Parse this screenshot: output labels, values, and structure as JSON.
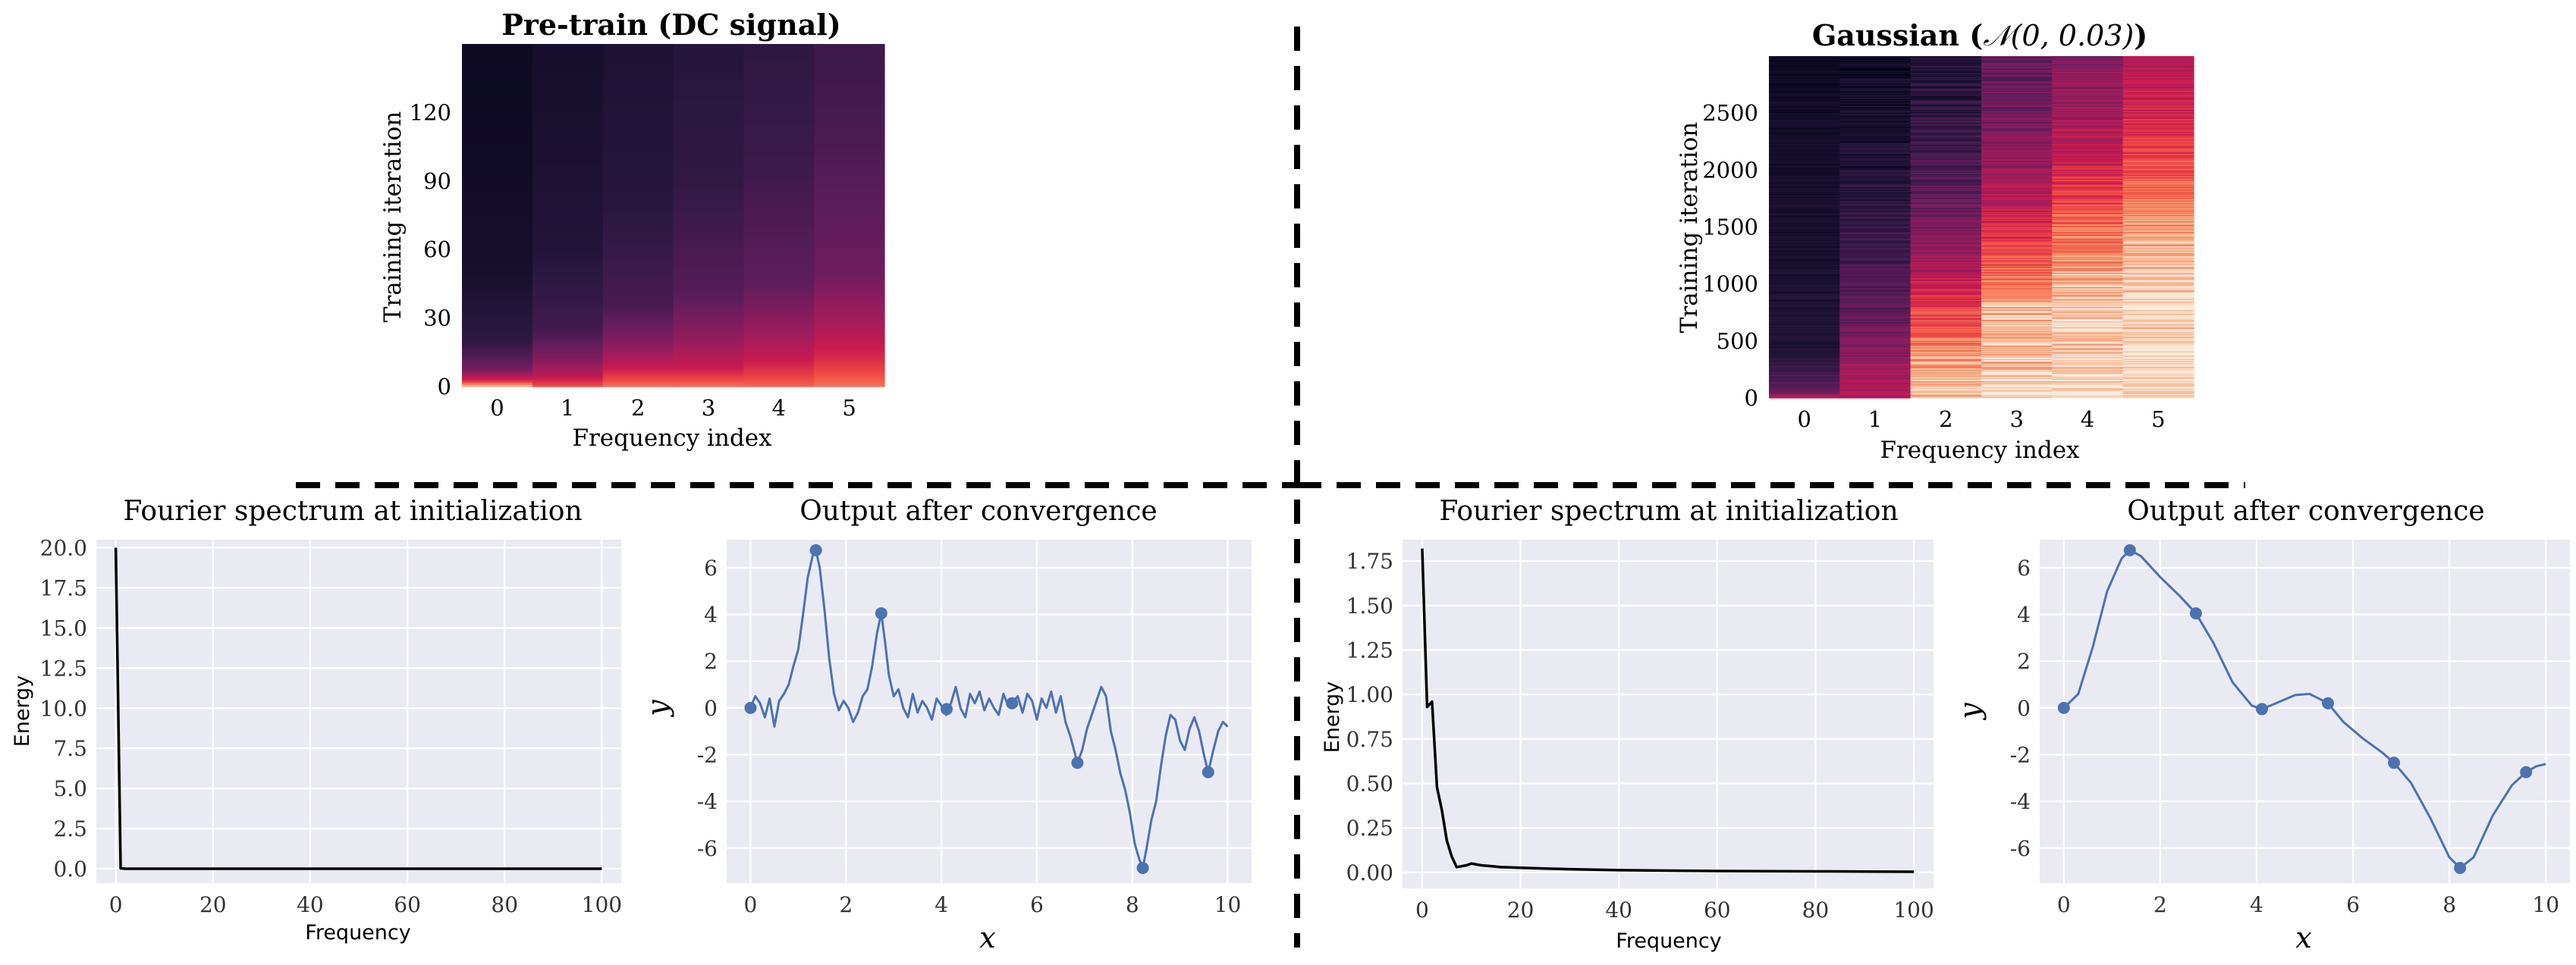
{
  "panels": {
    "top_left": {
      "title": "Pre-train (DC signal)",
      "xlabel": "Frequency index",
      "ylabel": "Training iteration"
    },
    "top_right": {
      "title_prefix": "Gaussian (",
      "title_math": "𝒩(0, 0.03)",
      "title_suffix": ")",
      "xlabel": "Frequency index",
      "ylabel": "Training iteration"
    },
    "bottom_1": {
      "title": "Fourier spectrum at initialization",
      "xlabel": "Frequency",
      "ylabel": "Energy"
    },
    "bottom_2": {
      "title": "Output after convergence",
      "xlabel": "x",
      "ylabel": "y"
    },
    "bottom_3": {
      "title": "Fourier spectrum at initialization",
      "xlabel": "Frequency",
      "ylabel": "Energy"
    },
    "bottom_4": {
      "title": "Output after convergence",
      "xlabel": "x",
      "ylabel": "y"
    }
  },
  "colors": {
    "axes_bg": "#eaeaf2",
    "grid": "#ffffff",
    "series_blue": "#4c72b0",
    "spectrum_line": "#000000",
    "divider": "#000000",
    "heatmap_colormap": "rocket"
  },
  "chart_data": [
    {
      "id": "heatmap_pretrain",
      "type": "heatmap",
      "title": "Pre-train (DC signal)",
      "xlabel": "Frequency index",
      "ylabel": "Training iteration",
      "x_categories": [
        0,
        1,
        2,
        3,
        4,
        5
      ],
      "ylim": [
        0,
        150
      ],
      "yticks": [
        0,
        30,
        60,
        90,
        120
      ],
      "colormap": "rocket",
      "value_range": [
        0,
        1
      ],
      "grid": false,
      "legend": "none",
      "columns": [
        {
          "freq": 0,
          "stops": [
            [
              0,
              0.95
            ],
            [
              3,
              0.62
            ],
            [
              8,
              0.35
            ],
            [
              20,
              0.16
            ],
            [
              50,
              0.08
            ],
            [
              100,
              0.05
            ],
            [
              150,
              0.04
            ]
          ]
        },
        {
          "freq": 1,
          "stops": [
            [
              0,
              0.75
            ],
            [
              5,
              0.55
            ],
            [
              12,
              0.4
            ],
            [
              25,
              0.22
            ],
            [
              60,
              0.12
            ],
            [
              150,
              0.07
            ]
          ]
        },
        {
          "freq": 2,
          "stops": [
            [
              0,
              0.8
            ],
            [
              8,
              0.6
            ],
            [
              18,
              0.42
            ],
            [
              35,
              0.24
            ],
            [
              80,
              0.14
            ],
            [
              150,
              0.1
            ]
          ]
        },
        {
          "freq": 3,
          "stops": [
            [
              0,
              0.8
            ],
            [
              8,
              0.6
            ],
            [
              20,
              0.45
            ],
            [
              40,
              0.28
            ],
            [
              90,
              0.17
            ],
            [
              150,
              0.13
            ]
          ]
        },
        {
          "freq": 4,
          "stops": [
            [
              0,
              0.78
            ],
            [
              10,
              0.62
            ],
            [
              22,
              0.48
            ],
            [
              45,
              0.3
            ],
            [
              100,
              0.2
            ],
            [
              150,
              0.16
            ]
          ]
        },
        {
          "freq": 5,
          "stops": [
            [
              0,
              0.8
            ],
            [
              12,
              0.65
            ],
            [
              25,
              0.52
            ],
            [
              50,
              0.34
            ],
            [
              110,
              0.24
            ],
            [
              150,
              0.2
            ]
          ]
        }
      ]
    },
    {
      "id": "heatmap_gaussian",
      "type": "heatmap",
      "title": "Gaussian (𝒩(0, 0.03))",
      "xlabel": "Frequency index",
      "ylabel": "Training iteration",
      "x_categories": [
        0,
        1,
        2,
        3,
        4,
        5
      ],
      "ylim": [
        0,
        3000
      ],
      "yticks": [
        0,
        500,
        1000,
        1500,
        2000,
        2500
      ],
      "colormap": "rocket",
      "value_range": [
        0,
        1
      ],
      "grid": false,
      "legend": "none",
      "columns": [
        {
          "freq": 0,
          "noise": 0.04,
          "stops": [
            [
              0,
              0.6
            ],
            [
              60,
              0.3
            ],
            [
              400,
              0.12
            ],
            [
              1500,
              0.08
            ],
            [
              3000,
              0.05
            ]
          ]
        },
        {
          "freq": 1,
          "noise": 0.08,
          "stops": [
            [
              0,
              0.55
            ],
            [
              700,
              0.32
            ],
            [
              1500,
              0.16
            ],
            [
              2200,
              0.1
            ],
            [
              3000,
              0.06
            ]
          ]
        },
        {
          "freq": 2,
          "noise": 0.1,
          "stops": [
            [
              0,
              0.96
            ],
            [
              500,
              0.82
            ],
            [
              900,
              0.62
            ],
            [
              1400,
              0.4
            ],
            [
              2200,
              0.2
            ],
            [
              3000,
              0.12
            ]
          ]
        },
        {
          "freq": 3,
          "noise": 0.1,
          "stops": [
            [
              0,
              0.97
            ],
            [
              700,
              0.92
            ],
            [
              1200,
              0.75
            ],
            [
              1800,
              0.52
            ],
            [
              2500,
              0.36
            ],
            [
              3000,
              0.3
            ]
          ]
        },
        {
          "freq": 4,
          "noise": 0.1,
          "stops": [
            [
              0,
              0.98
            ],
            [
              900,
              0.93
            ],
            [
              1500,
              0.78
            ],
            [
              2100,
              0.58
            ],
            [
              2700,
              0.44
            ],
            [
              3000,
              0.4
            ]
          ]
        },
        {
          "freq": 5,
          "noise": 0.08,
          "stops": [
            [
              0,
              0.98
            ],
            [
              1100,
              0.95
            ],
            [
              1700,
              0.82
            ],
            [
              2300,
              0.66
            ],
            [
              2800,
              0.56
            ],
            [
              3000,
              0.52
            ]
          ]
        }
      ]
    },
    {
      "id": "spectrum_dc",
      "type": "line",
      "title": "Fourier spectrum at initialization",
      "xlabel": "Frequency",
      "ylabel": "Energy",
      "xlim": [
        -4,
        104
      ],
      "ylim": [
        -0.9,
        20.5
      ],
      "xticks": [
        0,
        20,
        40,
        60,
        80,
        100
      ],
      "yticks": [
        0.0,
        2.5,
        5.0,
        7.5,
        10.0,
        12.5,
        15.0,
        17.5,
        20.0
      ],
      "ytick_decimals": 1,
      "grid": true,
      "legend": "none",
      "series": [
        {
          "x": [
            0,
            1,
            2,
            100
          ],
          "y": [
            20.0,
            0.02,
            0.0,
            0.0
          ]
        }
      ]
    },
    {
      "id": "output_dc",
      "type": "line",
      "title": "Output after convergence",
      "xlabel": "x",
      "ylabel": "y",
      "xlim": [
        -0.5,
        10.5
      ],
      "ylim": [
        -7.5,
        7.2
      ],
      "xticks": [
        0,
        2,
        4,
        6,
        8,
        10
      ],
      "yticks": [
        -6,
        -4,
        -2,
        0,
        2,
        4,
        6
      ],
      "grid": true,
      "legend": "none",
      "series": [
        {
          "x": [
            0.0,
            0.1,
            0.2,
            0.3,
            0.4,
            0.5,
            0.6,
            0.7,
            0.8,
            0.9,
            1.0,
            1.1,
            1.2,
            1.3,
            1.37,
            1.45,
            1.55,
            1.65,
            1.75,
            1.85,
            1.95,
            2.05,
            2.15,
            2.25,
            2.35,
            2.45,
            2.55,
            2.65,
            2.74,
            2.82,
            2.9,
            3.0,
            3.1,
            3.2,
            3.3,
            3.4,
            3.5,
            3.6,
            3.7,
            3.8,
            3.9,
            4.0,
            4.1,
            4.2,
            4.3,
            4.4,
            4.5,
            4.6,
            4.7,
            4.8,
            4.9,
            5.0,
            5.1,
            5.2,
            5.3,
            5.4,
            5.48,
            5.6,
            5.7,
            5.8,
            5.9,
            6.0,
            6.1,
            6.2,
            6.3,
            6.4,
            6.5,
            6.6,
            6.7,
            6.85,
            6.95,
            7.05,
            7.15,
            7.25,
            7.35,
            7.45,
            7.55,
            7.65,
            7.75,
            7.85,
            7.95,
            8.05,
            8.15,
            8.22,
            8.3,
            8.4,
            8.5,
            8.6,
            8.7,
            8.8,
            8.9,
            9.0,
            9.1,
            9.2,
            9.3,
            9.4,
            9.5,
            9.59,
            9.7,
            9.8,
            9.9,
            10.0
          ],
          "y": [
            0.0,
            0.5,
            0.2,
            -0.4,
            0.4,
            -0.8,
            0.3,
            0.6,
            1.0,
            1.8,
            2.5,
            4.0,
            5.6,
            6.5,
            6.75,
            6.0,
            4.2,
            2.1,
            0.6,
            -0.1,
            0.3,
            0.0,
            -0.6,
            -0.2,
            0.5,
            0.8,
            1.8,
            3.2,
            4.05,
            2.8,
            1.4,
            0.5,
            0.8,
            0.0,
            -0.4,
            0.6,
            -0.2,
            0.3,
            0.0,
            -0.5,
            0.4,
            0.1,
            -0.3,
            0.2,
            0.9,
            0.0,
            -0.4,
            0.6,
            0.2,
            0.7,
            -0.1,
            0.4,
            0.0,
            -0.3,
            0.6,
            0.1,
            0.2,
            0.5,
            -0.2,
            0.6,
            0.3,
            -0.5,
            0.4,
            0.0,
            0.7,
            -0.2,
            0.5,
            -0.6,
            -1.2,
            -2.35,
            -1.8,
            -0.9,
            -0.3,
            0.3,
            0.9,
            0.5,
            -1.0,
            -1.8,
            -2.8,
            -3.5,
            -4.5,
            -5.8,
            -6.5,
            -6.85,
            -6.0,
            -4.8,
            -4.0,
            -2.5,
            -1.2,
            -0.3,
            -0.5,
            -1.4,
            -1.8,
            -0.9,
            -0.4,
            -1.0,
            -2.0,
            -2.75,
            -1.8,
            -1.0,
            -0.6,
            -0.8
          ]
        }
      ],
      "points": {
        "x": [
          0.0,
          1.37,
          2.74,
          4.11,
          5.48,
          6.85,
          8.22,
          9.59
        ],
        "y": [
          0.0,
          6.75,
          4.05,
          -0.05,
          0.2,
          -2.35,
          -6.85,
          -2.75
        ]
      }
    },
    {
      "id": "spectrum_gaussian",
      "type": "line",
      "title": "Fourier spectrum at initialization",
      "xlabel": "Frequency",
      "ylabel": "Energy",
      "xlim": [
        -4,
        104
      ],
      "ylim": [
        -0.09,
        1.87
      ],
      "xticks": [
        0,
        20,
        40,
        60,
        80,
        100
      ],
      "yticks": [
        0.0,
        0.25,
        0.5,
        0.75,
        1.0,
        1.25,
        1.5,
        1.75
      ],
      "ytick_decimals": 2,
      "grid": true,
      "legend": "none",
      "series": [
        {
          "x": [
            0,
            1,
            2,
            3,
            4,
            5,
            6,
            7,
            8,
            9,
            10,
            12,
            14,
            16,
            18,
            20,
            25,
            30,
            40,
            50,
            60,
            70,
            80,
            90,
            100
          ],
          "y": [
            1.82,
            0.93,
            0.96,
            0.48,
            0.35,
            0.18,
            0.09,
            0.03,
            0.035,
            0.04,
            0.05,
            0.04,
            0.035,
            0.03,
            0.028,
            0.026,
            0.022,
            0.018,
            0.013,
            0.01,
            0.008,
            0.007,
            0.006,
            0.005,
            0.004
          ]
        }
      ]
    },
    {
      "id": "output_gaussian",
      "type": "line",
      "title": "Output after convergence",
      "xlabel": "x",
      "ylabel": "y",
      "xlim": [
        -0.5,
        10.5
      ],
      "ylim": [
        -7.5,
        7.2
      ],
      "xticks": [
        0,
        2,
        4,
        6,
        8,
        10
      ],
      "yticks": [
        -6,
        -4,
        -2,
        0,
        2,
        4,
        6
      ],
      "grid": true,
      "legend": "none",
      "series": [
        {
          "x": [
            0.0,
            0.3,
            0.6,
            0.9,
            1.2,
            1.37,
            1.6,
            2.0,
            2.4,
            2.74,
            3.1,
            3.5,
            3.9,
            4.11,
            4.4,
            4.8,
            5.1,
            5.48,
            5.8,
            6.2,
            6.6,
            6.85,
            7.2,
            7.6,
            8.0,
            8.22,
            8.5,
            8.9,
            9.3,
            9.59,
            9.8,
            10.0
          ],
          "y": [
            0.0,
            0.6,
            2.6,
            5.0,
            6.4,
            6.75,
            6.5,
            5.6,
            4.8,
            4.05,
            2.8,
            1.1,
            0.1,
            -0.05,
            0.2,
            0.55,
            0.6,
            0.2,
            -0.6,
            -1.3,
            -1.9,
            -2.35,
            -3.2,
            -4.7,
            -6.4,
            -6.85,
            -6.4,
            -4.6,
            -3.3,
            -2.75,
            -2.5,
            -2.4
          ]
        }
      ],
      "points": {
        "x": [
          0.0,
          1.37,
          2.74,
          4.11,
          5.48,
          6.85,
          8.22,
          9.59
        ],
        "y": [
          0.0,
          6.75,
          4.05,
          -0.05,
          0.2,
          -2.35,
          -6.85,
          -2.75
        ]
      }
    }
  ]
}
